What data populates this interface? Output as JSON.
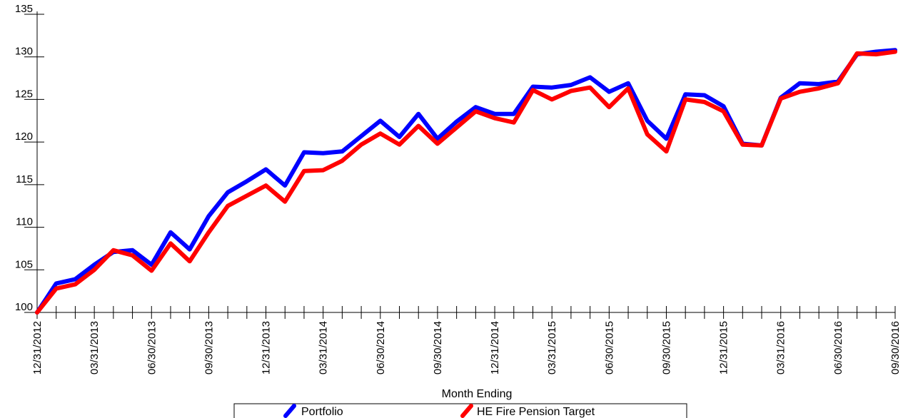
{
  "chart_data": {
    "type": "line",
    "xlabel": "Month Ending",
    "ylabel": "",
    "ylim": [
      100,
      135
    ],
    "yticks": [
      100,
      105,
      110,
      115,
      120,
      125,
      130,
      135
    ],
    "x_tick_labels": [
      "12/31/2012",
      "03/31/2013",
      "06/30/2013",
      "09/30/2013",
      "12/31/2013",
      "03/31/2014",
      "06/30/2014",
      "09/30/2014",
      "12/31/2014",
      "03/31/2015",
      "06/30/2015",
      "09/30/2015",
      "12/31/2015",
      "03/31/2016",
      "06/30/2016",
      "09/30/2016"
    ],
    "x_start": "12/31/2012",
    "x_end": "09/30/2016",
    "grid": false,
    "legend": "bottom",
    "series": [
      {
        "name": "Portfolio",
        "color": "#0000ff",
        "values": [
          100.0,
          103.4,
          103.9,
          105.6,
          107.1,
          107.3,
          105.6,
          109.4,
          107.4,
          111.3,
          114.1,
          115.4,
          116.8,
          114.9,
          118.8,
          118.7,
          118.9,
          120.7,
          122.5,
          120.6,
          123.3,
          120.4,
          122.4,
          124.1,
          123.3,
          123.3,
          126.5,
          126.4,
          126.7,
          127.6,
          125.9,
          126.9,
          122.5,
          120.4,
          125.6,
          125.5,
          124.2,
          119.8,
          119.6,
          125.2,
          126.9,
          126.8,
          127.1,
          130.3,
          130.6,
          130.8
        ]
      },
      {
        "name": "HE Fire Pension Target",
        "color": "#ff0000",
        "values": [
          100.0,
          102.8,
          103.3,
          105.0,
          107.3,
          106.7,
          104.9,
          108.1,
          106.0,
          109.4,
          112.5,
          113.7,
          114.9,
          113.0,
          116.6,
          116.7,
          117.8,
          119.7,
          121.0,
          119.7,
          121.9,
          119.8,
          121.7,
          123.6,
          122.8,
          122.3,
          126.1,
          125.0,
          126.0,
          126.4,
          124.1,
          126.3,
          120.9,
          118.9,
          125.0,
          124.7,
          123.6,
          119.7,
          119.6,
          125.1,
          125.9,
          126.3,
          126.9,
          130.4,
          130.3,
          130.6
        ]
      }
    ]
  }
}
